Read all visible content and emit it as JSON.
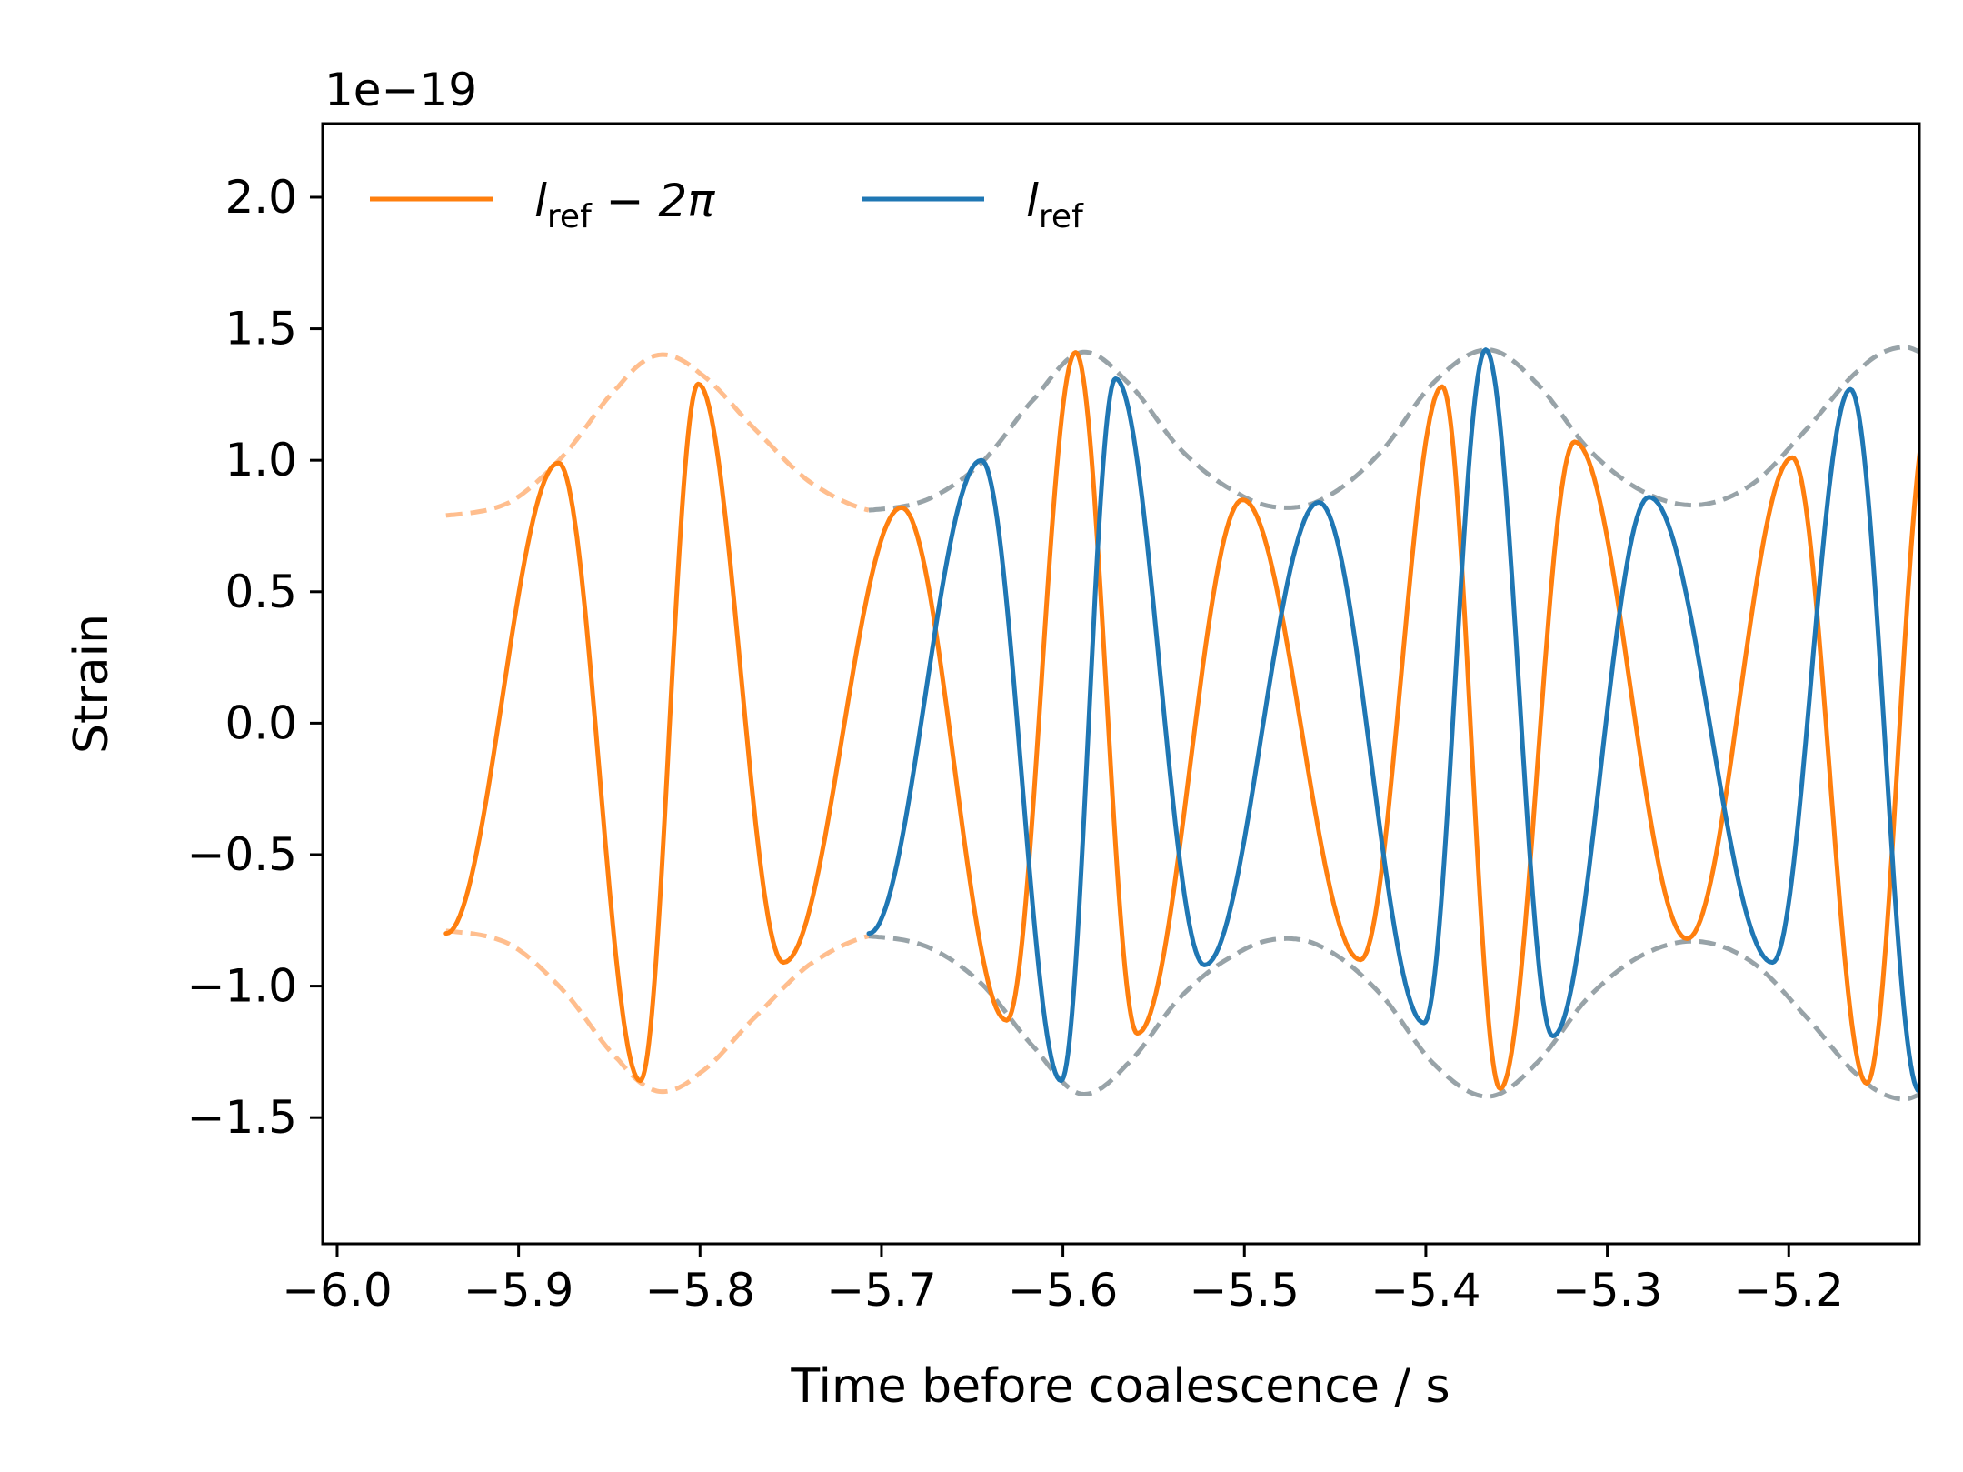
{
  "chart_data": {
    "type": "line",
    "xlabel": "Time before coalescence / s",
    "ylabel": "Strain",
    "y_offset_text": "1e−19",
    "y_scale": 1e-19,
    "xlim": [
      -6.008,
      -5.128
    ],
    "ylim": [
      -1.98,
      2.28
    ],
    "x_ticks": [
      -6.0,
      -5.9,
      -5.8,
      -5.7,
      -5.6,
      -5.5,
      -5.4,
      -5.3,
      -5.2
    ],
    "x_tick_labels": [
      "−6.0",
      "−5.9",
      "−5.8",
      "−5.7",
      "−5.6",
      "−5.5",
      "−5.4",
      "−5.3",
      "−5.2"
    ],
    "y_ticks": [
      -1.5,
      -1.0,
      -0.5,
      0.0,
      0.5,
      1.0,
      1.5,
      2.0
    ],
    "y_tick_labels": [
      "−1.5",
      "−1.0",
      "−0.5",
      "0.0",
      "0.5",
      "1.0",
      "1.5",
      "2.0"
    ],
    "legend_position": "upper-left",
    "series": [
      {
        "name_base": "l",
        "name_sub": "ref",
        "name_suffix": " − 2π",
        "color": "#ff7f0e",
        "x_range": [
          -5.94,
          -5.12
        ],
        "extrema": [
          {
            "x": -5.94,
            "y": -0.8
          },
          {
            "x": -5.878,
            "y": 0.99
          },
          {
            "x": -5.833,
            "y": -1.36
          },
          {
            "x": -5.801,
            "y": 1.29
          },
          {
            "x": -5.754,
            "y": -0.91
          },
          {
            "x": -5.689,
            "y": 0.82
          },
          {
            "x": -5.631,
            "y": -1.13
          },
          {
            "x": -5.593,
            "y": 1.41
          },
          {
            "x": -5.559,
            "y": -1.18
          },
          {
            "x": -5.501,
            "y": 0.85
          },
          {
            "x": -5.436,
            "y": -0.9
          },
          {
            "x": -5.391,
            "y": 1.28
          },
          {
            "x": -5.359,
            "y": -1.39
          },
          {
            "x": -5.318,
            "y": 1.07
          },
          {
            "x": -5.256,
            "y": -0.82
          },
          {
            "x": -5.198,
            "y": 1.01
          },
          {
            "x": -5.157,
            "y": -1.37
          },
          {
            "x": -5.122,
            "y": 1.2
          }
        ]
      },
      {
        "name_base": "l",
        "name_sub": "ref",
        "name_suffix": "",
        "color": "#1f77b4",
        "x_range": [
          -5.707,
          -5.12
        ],
        "extrema": [
          {
            "x": -5.707,
            "y": -0.8
          },
          {
            "x": -5.645,
            "y": 1.0
          },
          {
            "x": -5.601,
            "y": -1.36
          },
          {
            "x": -5.571,
            "y": 1.31
          },
          {
            "x": -5.522,
            "y": -0.92
          },
          {
            "x": -5.459,
            "y": 0.84
          },
          {
            "x": -5.401,
            "y": -1.14
          },
          {
            "x": -5.367,
            "y": 1.42
          },
          {
            "x": -5.33,
            "y": -1.19
          },
          {
            "x": -5.277,
            "y": 0.86
          },
          {
            "x": -5.209,
            "y": -0.91
          },
          {
            "x": -5.166,
            "y": 1.27
          },
          {
            "x": -5.128,
            "y": -1.4
          },
          {
            "x": -5.122,
            "y": -1.19
          }
        ]
      }
    ],
    "envelopes": [
      {
        "color": "#ffbb88",
        "x_range": [
          -5.94,
          -5.707
        ],
        "points": [
          {
            "x": -5.94,
            "y": 0.79
          },
          {
            "x": -5.905,
            "y": 0.84
          },
          {
            "x": -5.875,
            "y": 1.02
          },
          {
            "x": -5.845,
            "y": 1.28
          },
          {
            "x": -5.823,
            "y": 1.4
          },
          {
            "x": -5.8,
            "y": 1.33
          },
          {
            "x": -5.77,
            "y": 1.12
          },
          {
            "x": -5.74,
            "y": 0.92
          },
          {
            "x": -5.707,
            "y": 0.81
          }
        ]
      },
      {
        "color": "#8d999f",
        "x_range": [
          -5.707,
          -5.12
        ],
        "points": [
          {
            "x": -5.707,
            "y": 0.81
          },
          {
            "x": -5.675,
            "y": 0.85
          },
          {
            "x": -5.645,
            "y": 0.99
          },
          {
            "x": -5.615,
            "y": 1.24
          },
          {
            "x": -5.59,
            "y": 1.41
          },
          {
            "x": -5.565,
            "y": 1.3
          },
          {
            "x": -5.535,
            "y": 1.04
          },
          {
            "x": -5.505,
            "y": 0.88
          },
          {
            "x": -5.48,
            "y": 0.82
          },
          {
            "x": -5.455,
            "y": 0.86
          },
          {
            "x": -5.425,
            "y": 1.03
          },
          {
            "x": -5.395,
            "y": 1.3
          },
          {
            "x": -5.366,
            "y": 1.42
          },
          {
            "x": -5.34,
            "y": 1.3
          },
          {
            "x": -5.31,
            "y": 1.04
          },
          {
            "x": -5.28,
            "y": 0.88
          },
          {
            "x": -5.25,
            "y": 0.83
          },
          {
            "x": -5.22,
            "y": 0.91
          },
          {
            "x": -5.19,
            "y": 1.12
          },
          {
            "x": -5.16,
            "y": 1.35
          },
          {
            "x": -5.138,
            "y": 1.43
          },
          {
            "x": -5.12,
            "y": 1.39
          }
        ]
      }
    ]
  }
}
